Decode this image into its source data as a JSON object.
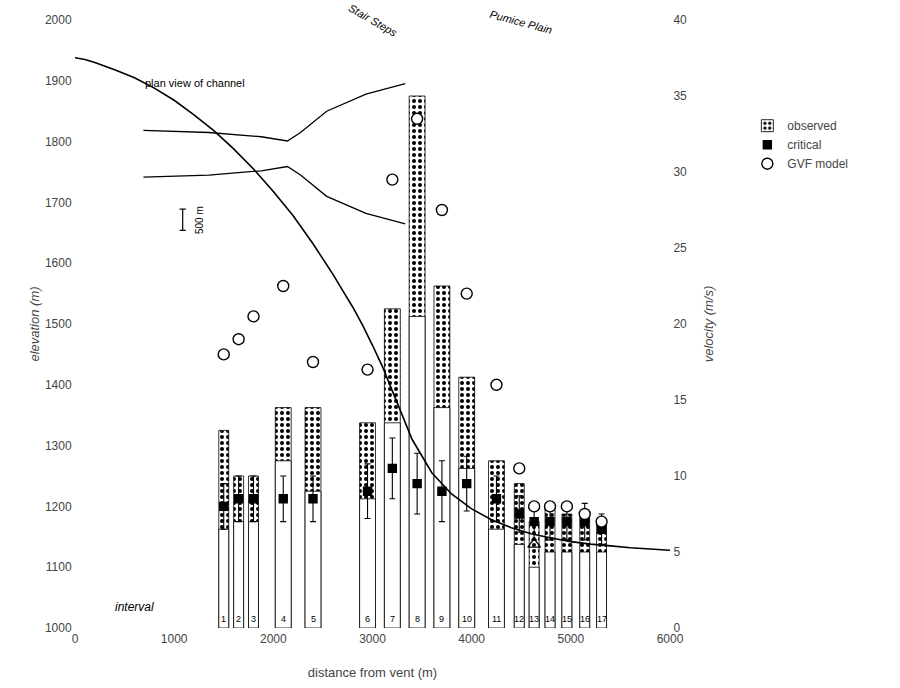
{
  "chart_data": {
    "type": "combo",
    "xlabel": "distance from vent (m)",
    "ylabel": "elevation (m)",
    "y2label": "velocity (m/s)",
    "xlim": [
      0,
      6000
    ],
    "xticks": [
      0,
      1000,
      2000,
      3000,
      4000,
      5000,
      6000
    ],
    "ylim": [
      1000,
      2000
    ],
    "yticks": [
      1000,
      1100,
      1200,
      1300,
      1400,
      1500,
      1600,
      1700,
      1800,
      1900,
      2000
    ],
    "y2lim": [
      0,
      40
    ],
    "y2ticks": [
      0,
      5,
      10,
      15,
      20,
      25,
      30,
      35,
      40
    ],
    "grid": false,
    "legend": "right",
    "series": [
      {
        "type": "line",
        "color": "#000000",
        "x": [
          0,
          100,
          200,
          400,
          600,
          800,
          1000,
          1200,
          1400,
          1600,
          1800,
          2000,
          2200,
          2400,
          2600,
          2700,
          2800,
          2900,
          3000,
          3100,
          3200,
          3400,
          3600,
          3800,
          4000,
          4200,
          4400,
          4600,
          4800,
          5000,
          5200,
          5400,
          5600,
          5800,
          6000
        ],
        "values": [
          1938,
          1935,
          1930,
          1918,
          1905,
          1888,
          1868,
          1844,
          1818,
          1788,
          1755,
          1718,
          1678,
          1632,
          1582,
          1555,
          1528,
          1498,
          1465,
          1430,
          1390,
          1310,
          1255,
          1220,
          1196,
          1178,
          1165,
          1155,
          1148,
          1142,
          1138,
          1135,
          1132,
          1130,
          1128
        ]
      },
      {
        "name": "observed",
        "type": "bar",
        "axis": "y2",
        "marker": "dots",
        "color": "#000000",
        "x": [
          1500,
          1650,
          1800,
          2100,
          2400,
          2950,
          3200,
          3450,
          3700,
          3950,
          4250,
          4480,
          4630,
          4790,
          4960,
          5140,
          5310
        ],
        "widths": [
          100,
          100,
          100,
          160,
          160,
          160,
          160,
          160,
          160,
          160,
          160,
          100,
          100,
          100,
          100,
          100,
          100
        ],
        "values": [
          13.0,
          10.0,
          10.0,
          14.5,
          14.5,
          13.5,
          21.0,
          35.0,
          22.5,
          16.5,
          11.0,
          9.5,
          7.0,
          8.0,
          7.5,
          7.5,
          7.0
        ]
      },
      {
        "type": "bar",
        "axis": "y2",
        "color": "#ffffff",
        "x": [
          1500,
          1650,
          1800,
          2100,
          2400,
          2950,
          3200,
          3450,
          3700,
          3950,
          4250,
          4480,
          4630,
          4790,
          4960,
          5140,
          5310
        ],
        "widths": [
          100,
          100,
          100,
          160,
          160,
          160,
          160,
          160,
          160,
          160,
          160,
          100,
          100,
          100,
          100,
          100,
          100
        ],
        "values": [
          6.5,
          7.0,
          7.0,
          11.0,
          9.0,
          8.5,
          13.5,
          20.5,
          14.5,
          10.5,
          6.5,
          5.5,
          4.0,
          5.0,
          5.0,
          5.0,
          5.0
        ]
      },
      {
        "name": "critical",
        "type": "scatter",
        "axis": "y2",
        "marker": "square",
        "color": "#000000",
        "x": [
          1500,
          1650,
          1800,
          2100,
          2400,
          2950,
          3200,
          3450,
          3700,
          3950,
          4250,
          4480,
          4630,
          4790,
          4960,
          5140,
          5310
        ],
        "values": [
          8.0,
          8.5,
          8.5,
          8.5,
          8.5,
          9.0,
          10.5,
          9.5,
          9.0,
          9.5,
          8.5,
          7.5,
          7.0,
          7.0,
          7.0,
          7.0,
          6.5
        ],
        "errors": [
          1.5,
          1.5,
          1.5,
          1.5,
          1.5,
          1.8,
          2.0,
          2.0,
          2.0,
          1.8,
          1.5,
          1.2,
          1.2,
          1.2,
          1.2,
          1.2,
          1.0
        ]
      },
      {
        "name": "GVF model",
        "type": "scatter",
        "axis": "y2",
        "marker": "circle",
        "color": "#ffffff",
        "x": [
          1500,
          1650,
          1800,
          2100,
          2400,
          2950,
          3200,
          3450,
          3700,
          3950,
          4250,
          4480,
          4630,
          4790,
          4960,
          5140,
          5310
        ],
        "values": [
          18.0,
          19.0,
          20.5,
          22.5,
          17.5,
          17.0,
          29.5,
          33.5,
          27.5,
          22.0,
          16.0,
          10.5,
          8.0,
          8.0,
          8.0,
          7.5,
          7.0
        ]
      },
      {
        "type": "scatter",
        "axis": "y2",
        "marker": "triangle-up-open",
        "color": "#000000",
        "x": [
          4630
        ],
        "values": [
          5.5
        ]
      }
    ],
    "interval_labels": {
      "x": [
        1500,
        1650,
        1800,
        2100,
        2400,
        2950,
        3200,
        3450,
        3700,
        3950,
        4250,
        4480,
        4630,
        4790,
        4960,
        5140,
        5310
      ],
      "y": 1003,
      "labels": [
        "1",
        "2",
        "3",
        "4",
        "5",
        "6",
        "7",
        "8",
        "9",
        "10",
        "11",
        "12",
        "13",
        "14",
        "15",
        "16",
        "17"
      ]
    },
    "annotations": [
      {
        "text": "interval",
        "x": 380,
        "y": 1020
      },
      {
        "text": "Stair Steps",
        "x": 3000,
        "y": 1965
      },
      {
        "text": "Pumice Plain",
        "x": 4500,
        "y": 1970
      }
    ],
    "inset_labels": [
      "plan view of channel",
      "500 m"
    ]
  }
}
